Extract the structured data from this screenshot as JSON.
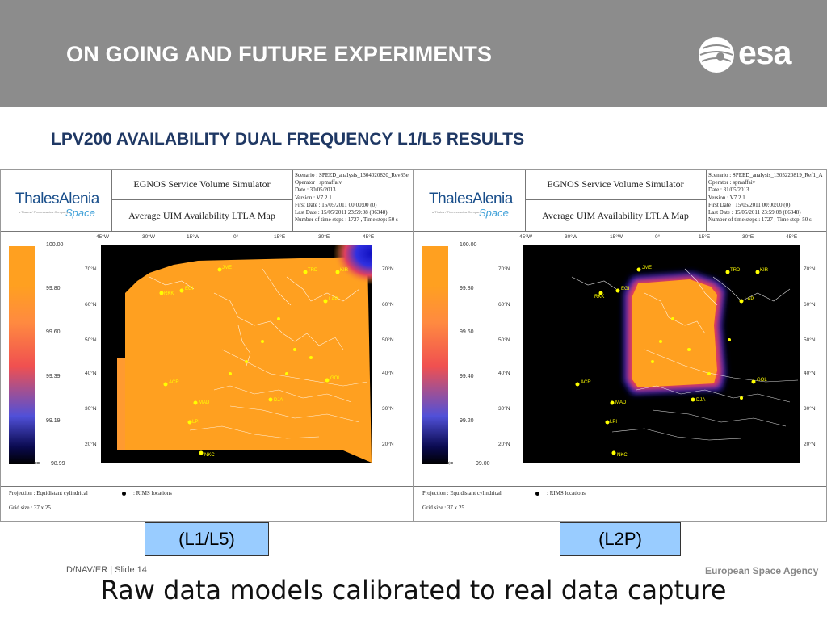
{
  "header": {
    "title": "ON GOING AND FUTURE EXPERIMENTS",
    "logo_text": "esa",
    "background": "#8c8c8c"
  },
  "subtitle": "LPV200 AVAILABILITY DUAL FREQUENCY L1/L5 RESULTS",
  "panels": [
    {
      "company_name": "ThalesAlenia",
      "company_sub": "Space",
      "company_tag": "a Thales / Finmeccanica Company",
      "sim_title": "EGNOS Service Volume Simulator",
      "map_title": "Average UIM Availability LTLA Map",
      "meta": [
        "Scenario  : SPEED_analysis_1304020820_Rev85e",
        "Operator  : spmaffaiv",
        "Date        : 30/05/2013",
        "Version    : V7.2.1",
        "First Date  : 15/05/2011 00:00:00 (0)",
        "Last Date  : 15/05/2011 23:59:08 (86348)",
        "Number of time steps    : 1727 , Time step: 50 s"
      ],
      "legend_values": [
        "100.00",
        "99.80",
        "99.60",
        "99.39",
        "99.19",
        "98.99"
      ],
      "legend_less_equal": "<=",
      "lat_labels": [
        "70°N",
        "60°N",
        "50°N",
        "40°N",
        "30°N",
        "20°N"
      ],
      "lon_labels": [
        "45°W",
        "30°W",
        "15°W",
        "0°",
        "15°E",
        "30°E",
        "45°E"
      ],
      "stations": [
        "JME",
        "EGI",
        "RKK",
        "TRD",
        "KIR",
        "LAP",
        "ACR",
        "MAD",
        "LPI",
        "NKC",
        "DJA",
        "GOL"
      ],
      "projection": "Projection : Equidistant cylindrical",
      "rims_label": ": RIMS locations",
      "grid_size": "Grid size : 37 x 25",
      "box_label": "(L1/L5)"
    },
    {
      "company_name": "ThalesAlenia",
      "company_sub": "Space",
      "company_tag": "a Thales / Finmeccanica Company",
      "sim_title": "EGNOS Service Volume Simulator",
      "map_title": "Average UIM Availability LTLA Map",
      "meta": [
        "Scenario  : SPEED_analysis_1305220819_Ref1_A",
        "Operator  : spmaffaiv",
        "Date        : 31/05/2013",
        "Version    : V7.2.1",
        "First Date  : 15/05/2011 00:00:00 (0)",
        "Last Date  : 15/05/2011 23:59:08 (86348)",
        "Number of time steps    : 1727 , Time step: 50 s"
      ],
      "legend_values": [
        "100.00",
        "99.80",
        "99.60",
        "99.40",
        "99.20",
        "99.00"
      ],
      "legend_less_equal": "<=",
      "lat_labels": [
        "70°N",
        "60°N",
        "50°N",
        "40°N",
        "30°N",
        "20°N"
      ],
      "lon_labels": [
        "45°W",
        "30°W",
        "15°W",
        "0°",
        "15°E",
        "30°E",
        "45°E"
      ],
      "stations": [
        "JME",
        "EGI",
        "RKK",
        "TRD",
        "KIR",
        "LAP",
        "ACR",
        "MAD",
        "LPI",
        "NKC",
        "DJA",
        "GOL"
      ],
      "projection": "Projection : Equidistant cylindrical",
      "rims_label": ": RIMS locations",
      "grid_size": "Grid size : 37 x 25",
      "box_label": "(L2P)"
    }
  ],
  "footer": {
    "left": "D/NAV/ER | Slide 14",
    "right": "European Space Agency"
  },
  "caption": "Raw data models calibrated to real data capture"
}
